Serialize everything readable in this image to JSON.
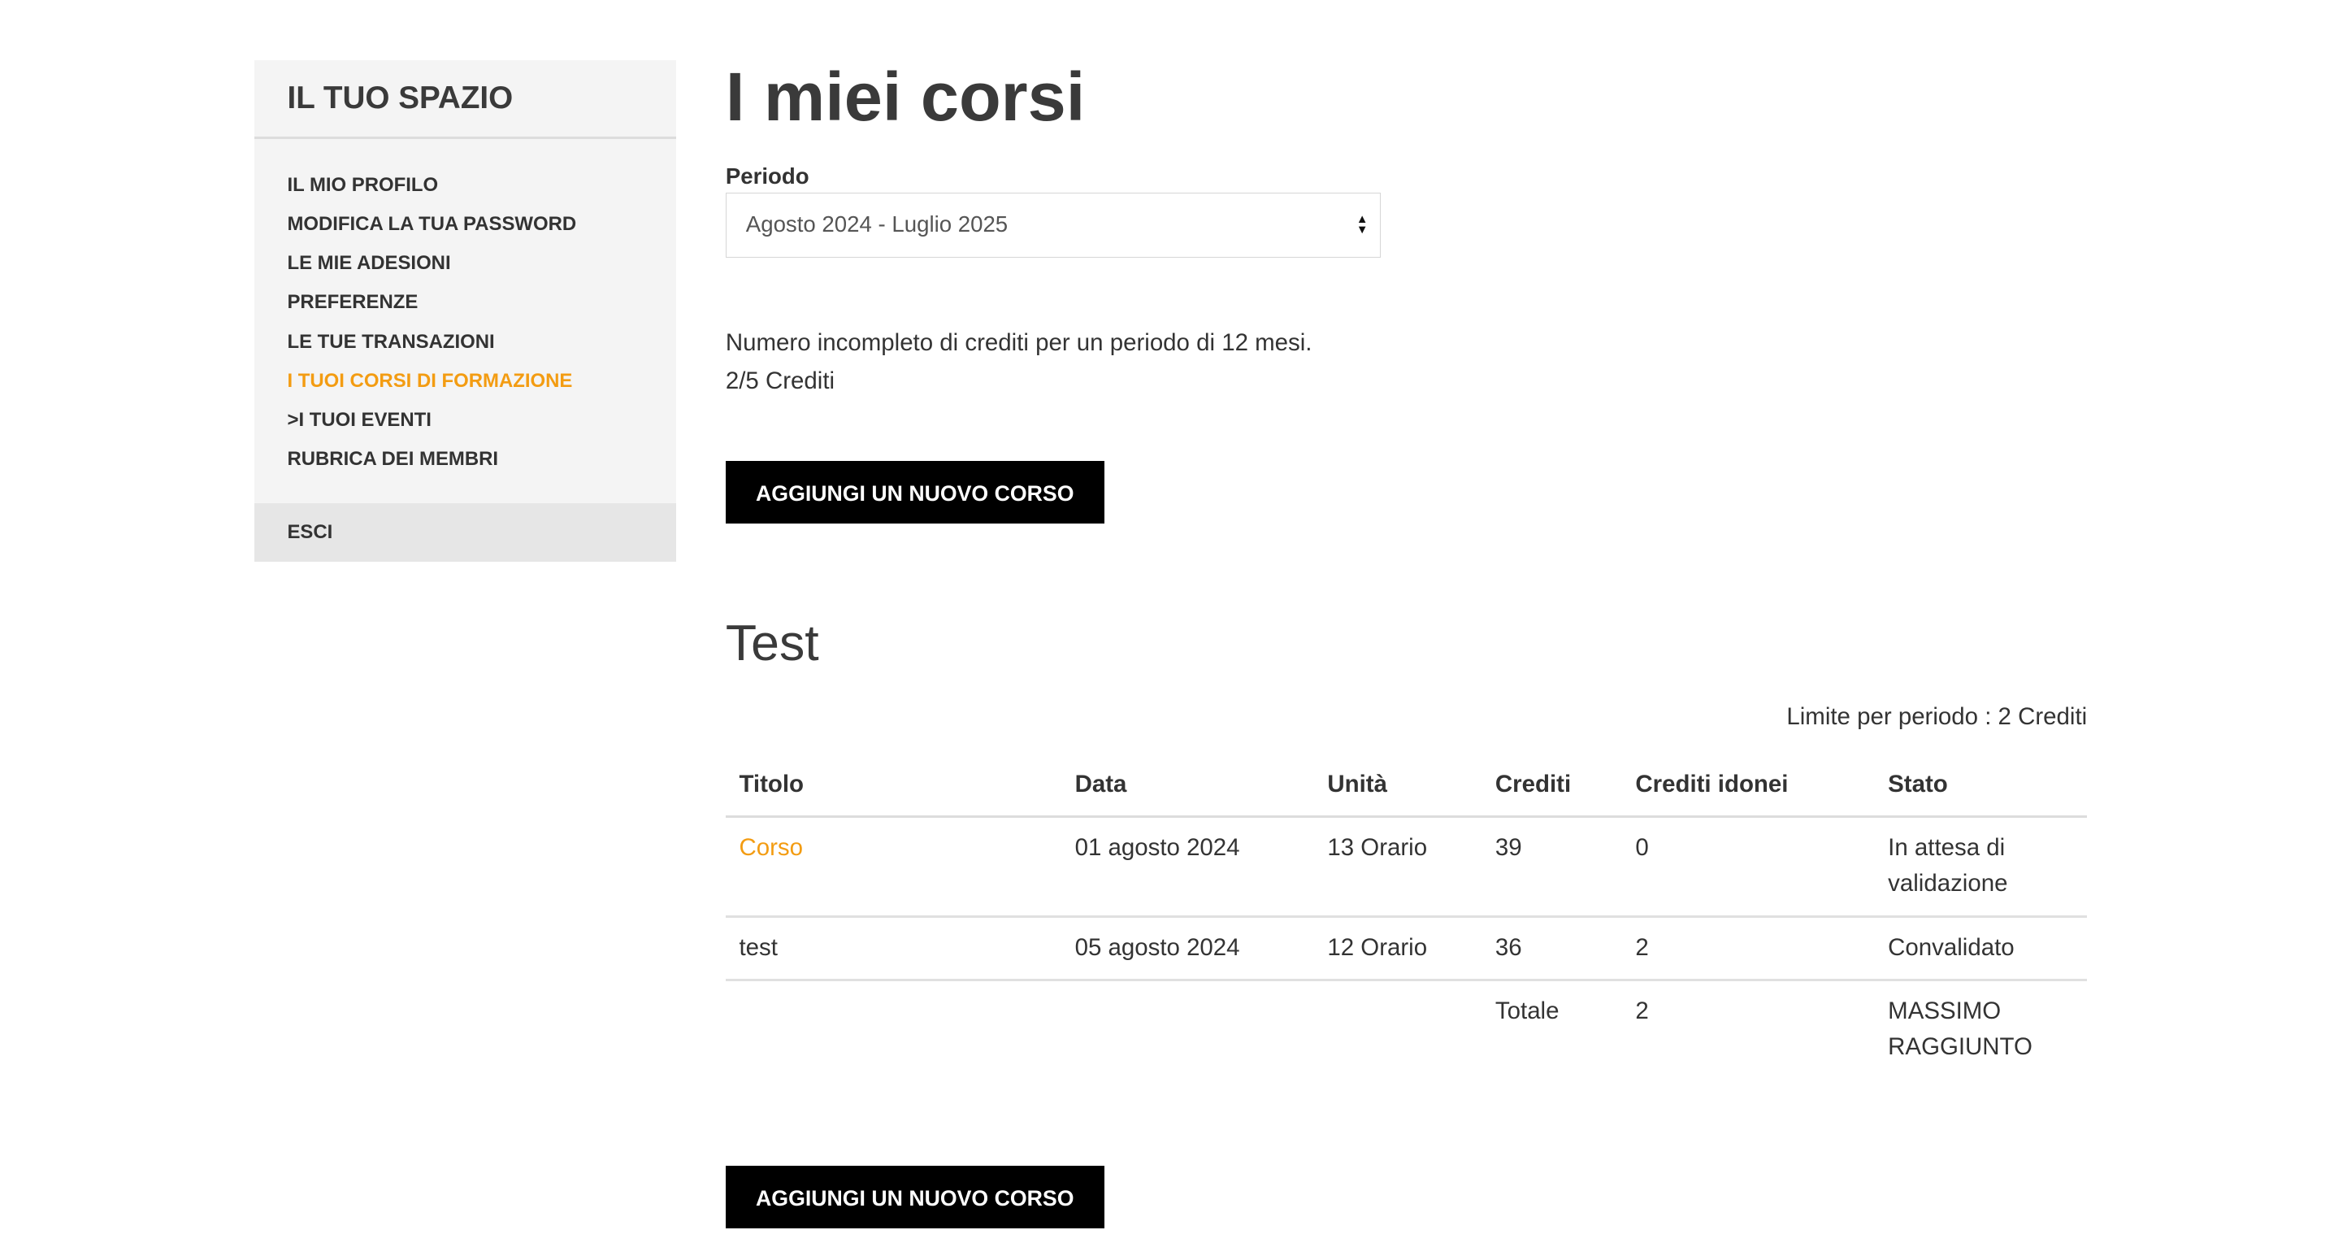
{
  "sidebar": {
    "title": "IL TUO SPAZIO",
    "items": [
      {
        "label": "IL MIO PROFILO",
        "active": false
      },
      {
        "label": "MODIFICA LA TUA PASSWORD",
        "active": false
      },
      {
        "label": "LE MIE ADESIONI",
        "active": false
      },
      {
        "label": "PREFERENZE",
        "active": false
      },
      {
        "label": "LE TUE TRANSAZIONI",
        "active": false
      },
      {
        "label": "I TUOI CORSI DI FORMAZIONE",
        "active": true
      },
      {
        "label": ">I TUOI EVENTI",
        "active": false
      },
      {
        "label": "RUBRICA DEI MEMBRI",
        "active": false
      }
    ],
    "logout": "ESCI"
  },
  "main": {
    "title": "I miei corsi",
    "period_label": "Periodo",
    "period_value": "Agosto 2024 - Luglio 2025",
    "info_line1": "Numero incompleto di crediti per un periodo di 12 mesi.",
    "info_line2": "2/5 Crediti",
    "add_button": "AGGIUNGI UN NUOVO CORSO",
    "section_title": "Test",
    "limit": "Limite per periodo : 2 Crediti",
    "table": {
      "headers": [
        "Titolo",
        "Data",
        "Unità",
        "Crediti",
        "Crediti idonei",
        "Stato"
      ],
      "rows": [
        [
          "Corso",
          "01 agosto 2024",
          "13 Orario",
          "39",
          "0",
          "In attesa di validazione"
        ],
        [
          "test",
          "05 agosto 2024",
          "12 Orario",
          "36",
          "2",
          "Convalidato"
        ]
      ],
      "total": {
        "label": "Totale",
        "value": "2",
        "status": "MASSIMO RAGGIUNTO"
      }
    }
  },
  "colors": {
    "accent": "#f39c12",
    "button": "#000000"
  }
}
